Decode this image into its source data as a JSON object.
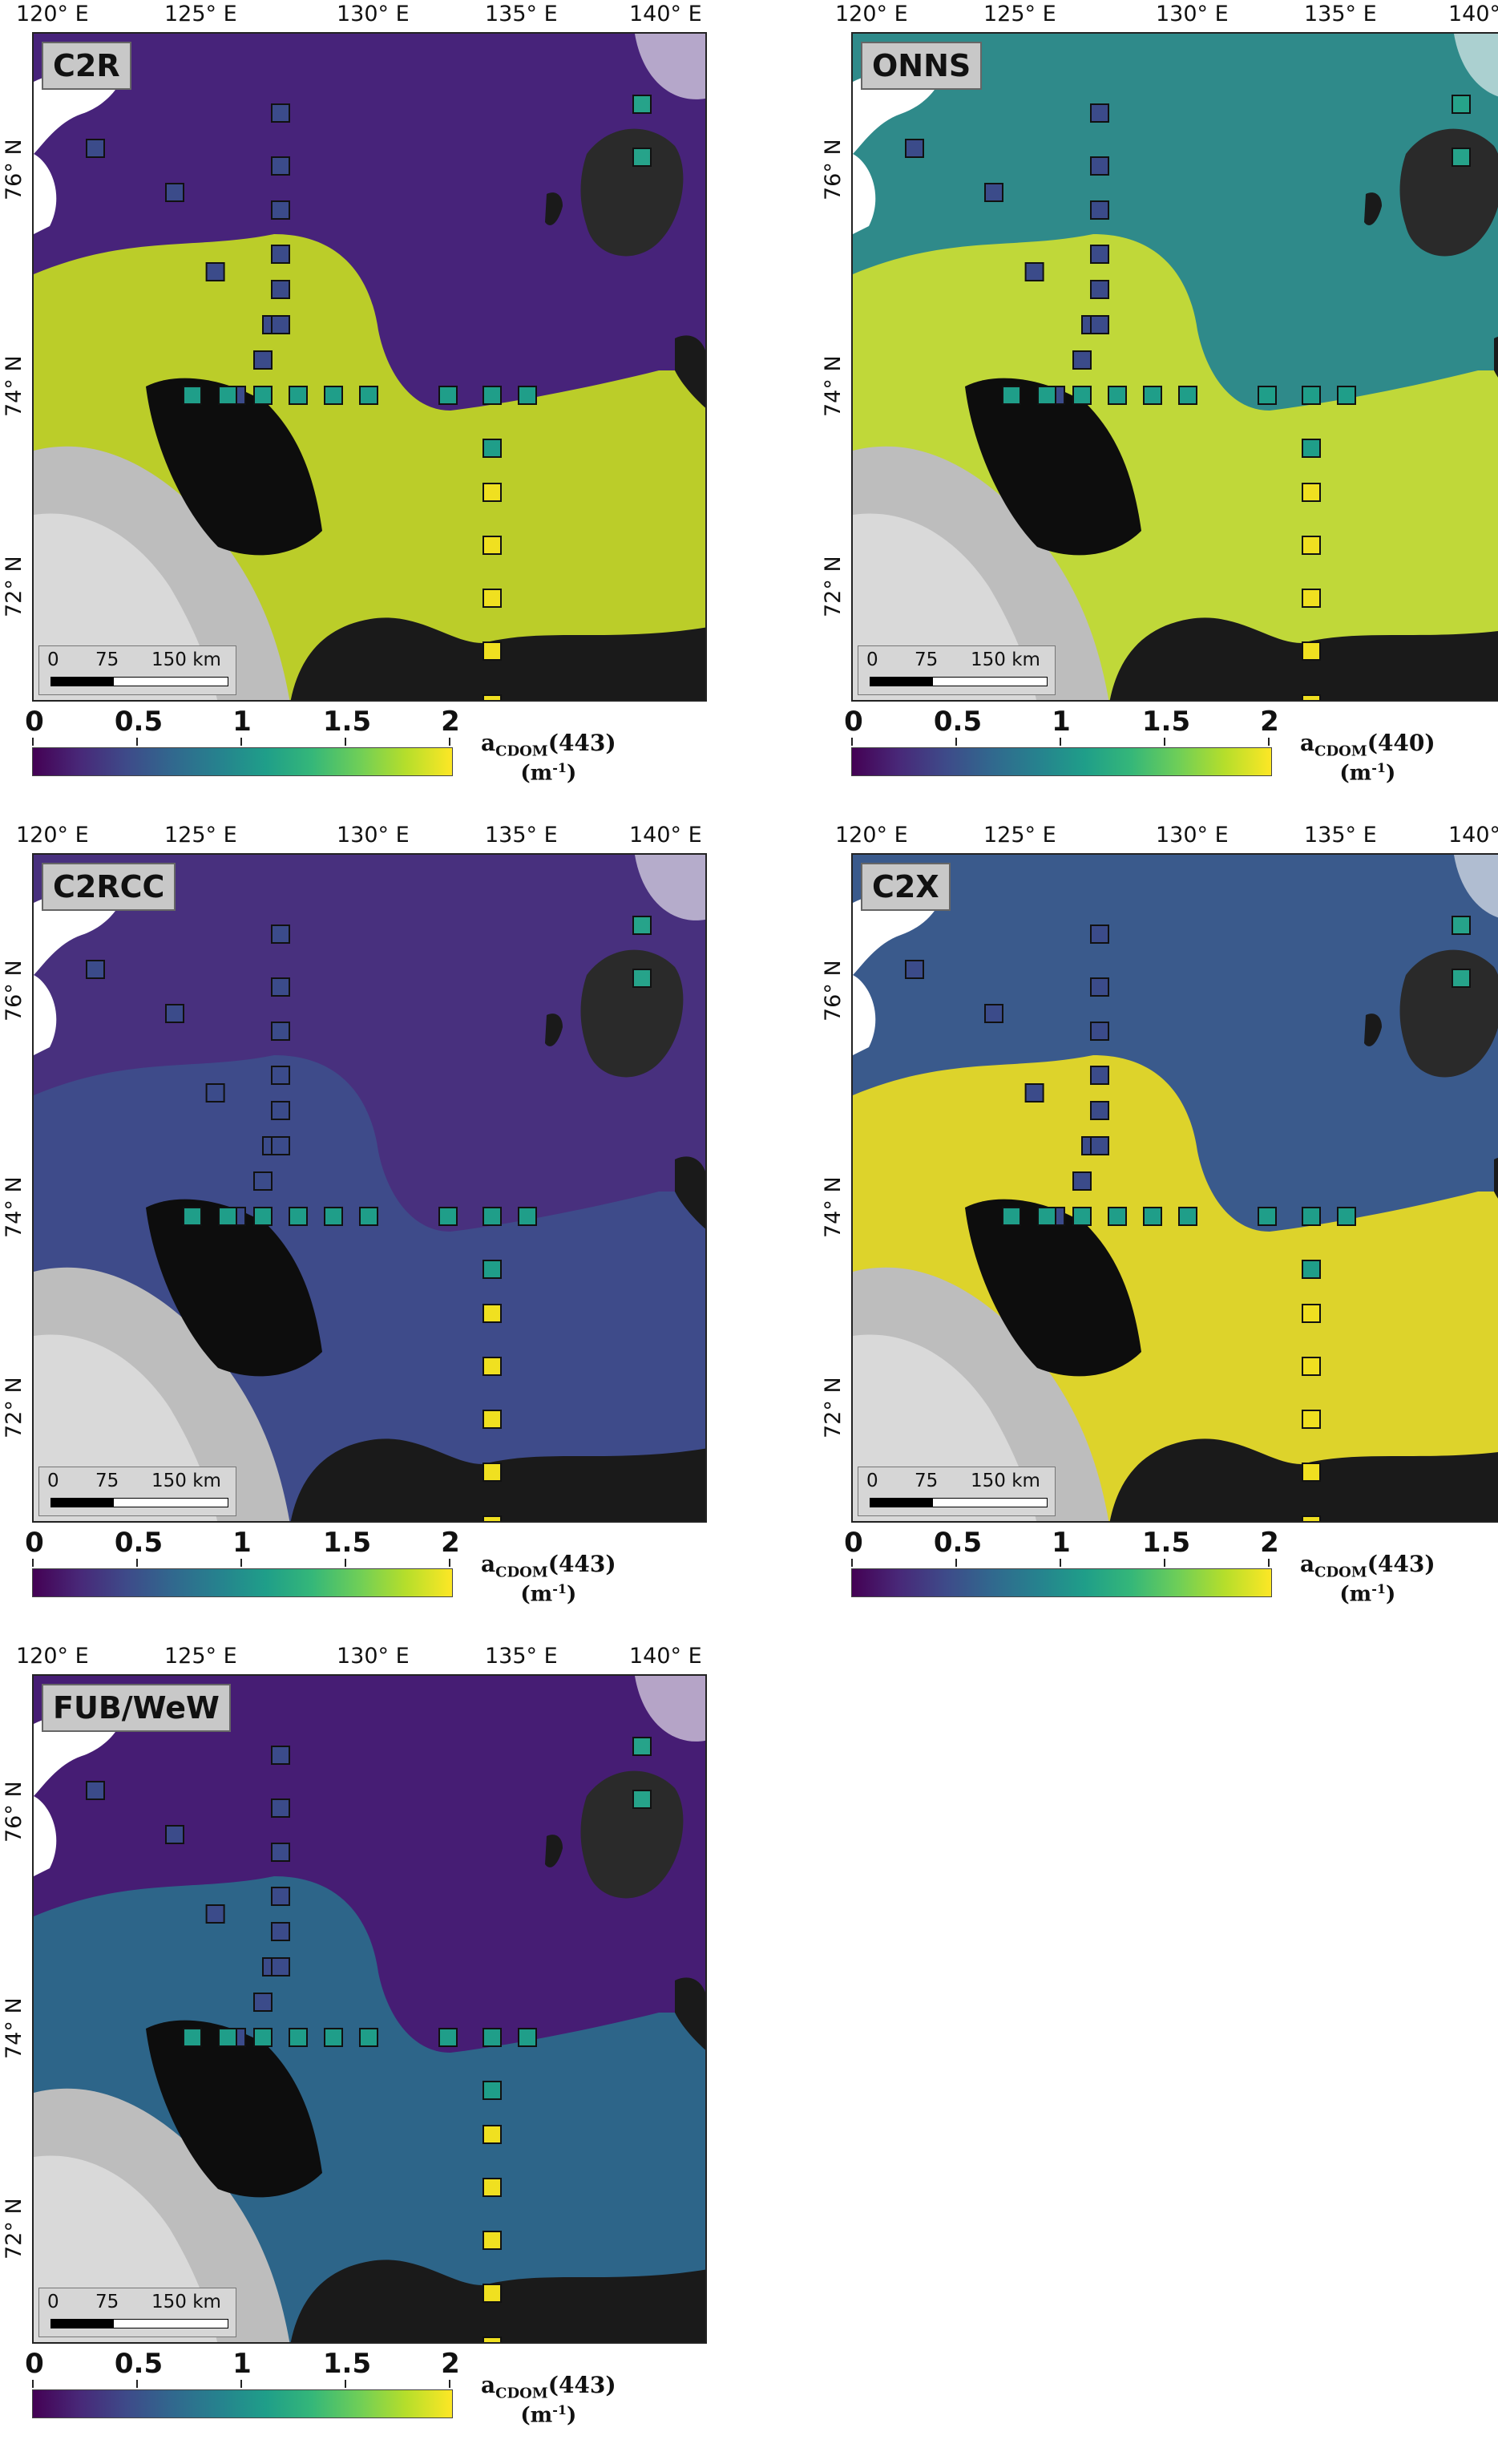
{
  "lon_labels": [
    "120° E",
    "125° E",
    "130° E",
    "135° E",
    "140° E"
  ],
  "lat_labels": [
    "76° N",
    "74° N",
    "72° N"
  ],
  "scale": {
    "t0": "0",
    "t75": "75",
    "t150": "150 km"
  },
  "colorbar_ticks": [
    "0",
    "0.5",
    "1",
    "1.5",
    "2"
  ],
  "colors": {
    "low": "#440154",
    "mid": "#26828e",
    "high": "#fde725",
    "land_dark": "#1a1a1a",
    "cloud": "#ffffff"
  },
  "panels": [
    {
      "algorithm": "C2R",
      "var_sub": "CDOM",
      "wavelength": "(443)",
      "unit_base": "(m",
      "unit_exp": "-1",
      "unit_close": ")",
      "water_color": "#47237a",
      "coast_color": "#c8e020"
    },
    {
      "algorithm": "ONNS",
      "var_sub": "CDOM",
      "wavelength": "(440)",
      "unit_base": "(m",
      "unit_exp": "-1",
      "unit_close": ")",
      "water_color": "#2f8a8a",
      "coast_color": "#d0e030"
    },
    {
      "algorithm": "C2RCC",
      "var_sub": "CDOM",
      "wavelength": "(443)",
      "unit_base": "(m",
      "unit_exp": "-1",
      "unit_close": ")",
      "water_color": "#48307e",
      "coast_color": "#3d4f8c"
    },
    {
      "algorithm": "C2X",
      "var_sub": "CDOM",
      "wavelength": "(443)",
      "unit_base": "(m",
      "unit_exp": "-1",
      "unit_close": ")",
      "water_color": "#3a5a8c",
      "coast_color": "#f0e020"
    },
    {
      "algorithm": "FUB/WeW",
      "var_sub": "CDOM",
      "wavelength": "(443)",
      "unit_base": "(m",
      "unit_exp": "-1",
      "unit_close": ")",
      "water_color": "#461d74",
      "coast_color": "#2a6e8c"
    }
  ]
}
